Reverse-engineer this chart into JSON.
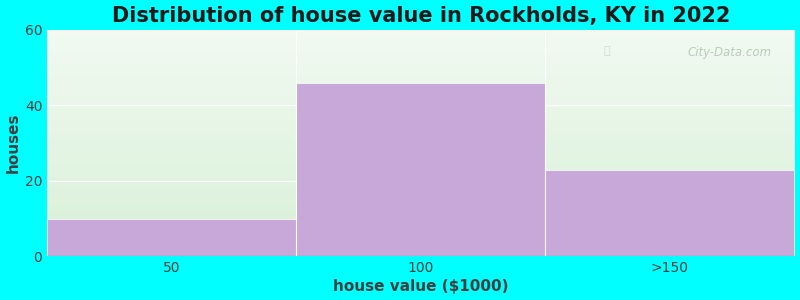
{
  "title": "Distribution of house value in Rockholds, KY in 2022",
  "xlabel": "house value ($1000)",
  "ylabel": "houses",
  "categories": [
    "50",
    "100",
    ">150"
  ],
  "values": [
    10,
    46,
    23
  ],
  "bar_color": "#c8a8d8",
  "bar_edgecolor": "#ffffff",
  "ylim": [
    0,
    60
  ],
  "yticks": [
    0,
    20,
    40,
    60
  ],
  "background_color": "#00ffff",
  "grad_top": "#f2faf2",
  "grad_bottom": "#d8f0d8",
  "title_fontsize": 15,
  "axis_label_fontsize": 11,
  "tick_fontsize": 10,
  "watermark": "City-Data.com"
}
